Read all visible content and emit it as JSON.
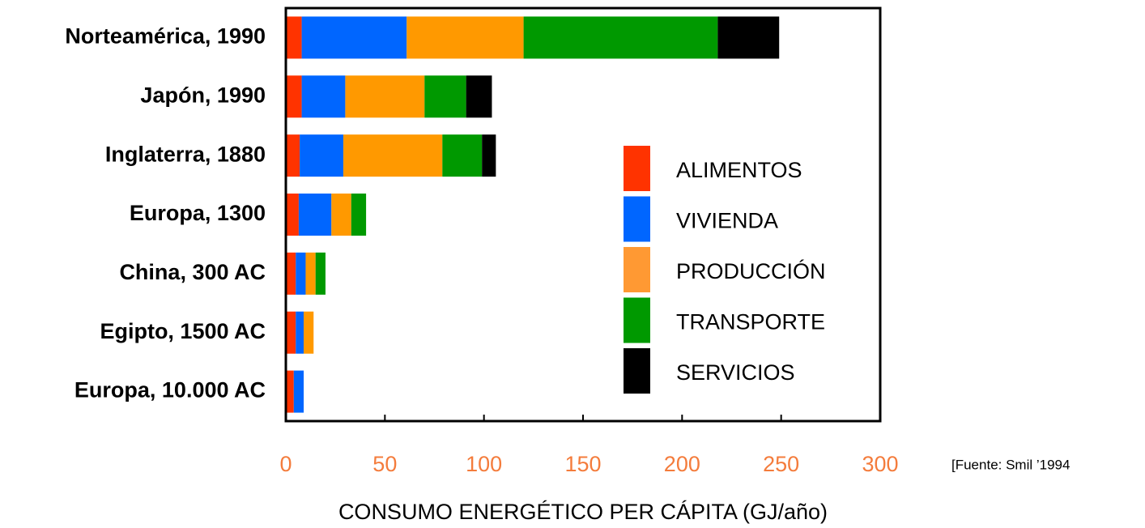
{
  "chart_data": {
    "type": "stacked_bar",
    "orientation": "horizontal",
    "categories": [
      "Norteamérica, 1990",
      "Japón, 1990",
      "Inglaterra, 1880",
      "Europa, 1300",
      "China, 300 AC",
      "Egipto, 1500 AC",
      "Europa, 10.000 AC"
    ],
    "series": [
      {
        "name": "ALIMENTOS",
        "color": "#ff3300",
        "values": [
          8,
          8,
          7,
          6.5,
          5,
          5,
          4
        ]
      },
      {
        "name": "VIVIENDA",
        "color": "#0066ff",
        "values": [
          53,
          22,
          22,
          16.5,
          5,
          4,
          5
        ]
      },
      {
        "name": "PRODUCCIÓN",
        "color": "#ff9900",
        "values": [
          59,
          40,
          50,
          10,
          5,
          5,
          0
        ]
      },
      {
        "name": "TRANSPORTE",
        "color": "#009900",
        "values": [
          98,
          21,
          20,
          7.5,
          5,
          0,
          0
        ]
      },
      {
        "name": "SERVICIOS",
        "color": "#000000",
        "values": [
          31,
          13,
          7,
          0,
          0,
          0,
          0
        ]
      }
    ],
    "xlim": [
      0,
      300
    ],
    "xticks": [
      0,
      50,
      100,
      150,
      200,
      250,
      300
    ],
    "xlabel": "CONSUMO ENERGÉTICO PER CÁPITA (GJ/año)",
    "source": "[Fuente: Smil ’1994"
  }
}
